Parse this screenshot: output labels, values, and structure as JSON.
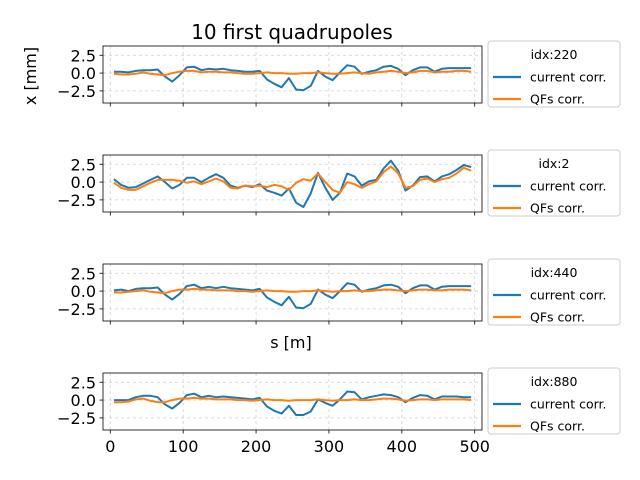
{
  "figure": {
    "title": "10 first quadrupoles",
    "ylabel": "x [mm]",
    "xlabel": "s [m]"
  },
  "colors": {
    "current": "#1f77b4",
    "qfs": "#ff7f0e",
    "grid": "#b0b0b0"
  },
  "chart_data": [
    {
      "type": "line",
      "legend_title": "idx:220",
      "legend_placement": "outside-right",
      "grid": true,
      "xlim": [
        -10,
        510
      ],
      "ylim": [
        -4.2,
        3.8
      ],
      "yticks": [
        "2.5",
        "0.0",
        "−2.5"
      ],
      "ytick_values": [
        2.5,
        0,
        -2.5
      ],
      "xticks": [
        0,
        100,
        200,
        300,
        400,
        500
      ],
      "show_xticklabels": false,
      "x": [
        5,
        15,
        25,
        35,
        45,
        55,
        65,
        75,
        85,
        95,
        105,
        115,
        125,
        135,
        145,
        155,
        165,
        175,
        185,
        195,
        205,
        215,
        225,
        235,
        245,
        255,
        265,
        275,
        285,
        295,
        305,
        315,
        325,
        335,
        345,
        355,
        365,
        375,
        385,
        395,
        405,
        415,
        425,
        435,
        445,
        455,
        465,
        475,
        485,
        495
      ],
      "series": [
        {
          "name": "current corr.",
          "values": [
            0.2,
            0.2,
            0.1,
            0.3,
            0.4,
            0.4,
            0.5,
            -0.5,
            -1.2,
            -0.3,
            0.8,
            0.9,
            0.4,
            0.6,
            0.5,
            0.6,
            0.4,
            0.3,
            0.2,
            0.2,
            0.3,
            -0.9,
            -1.5,
            -2.0,
            -0.7,
            -2.3,
            -2.4,
            -1.8,
            0.3,
            -0.5,
            -1.0,
            0.1,
            1.1,
            0.9,
            -0.1,
            0.2,
            0.4,
            0.9,
            1.0,
            0.6,
            -0.3,
            0.4,
            0.8,
            0.8,
            0.2,
            0.6,
            0.7,
            0.7,
            0.7,
            0.7
          ]
        },
        {
          "name": "QFs corr.",
          "values": [
            -0.1,
            -0.2,
            -0.2,
            -0.1,
            0.1,
            -0.1,
            -0.2,
            -0.3,
            0.0,
            0.2,
            0.3,
            0.3,
            0.1,
            0.2,
            0.2,
            0.1,
            0.1,
            0.0,
            -0.1,
            -0.1,
            0.0,
            0.1,
            0.0,
            0.0,
            -0.1,
            -0.1,
            0.0,
            0.0,
            0.1,
            0.0,
            -0.1,
            -0.1,
            0.0,
            0.1,
            0.0,
            -0.1,
            0.1,
            0.2,
            0.3,
            0.2,
            0.0,
            0.1,
            0.3,
            0.3,
            0.1,
            0.2,
            0.2,
            0.3,
            0.3,
            0.2
          ]
        }
      ]
    },
    {
      "type": "line",
      "legend_title": "idx:2",
      "legend_placement": "outside-right",
      "grid": true,
      "xlim": [
        -10,
        510
      ],
      "ylim": [
        -4.2,
        3.8
      ],
      "yticks": [
        "2.5",
        "0.0",
        "−2.5"
      ],
      "ytick_values": [
        2.5,
        0,
        -2.5
      ],
      "xticks": [
        0,
        100,
        200,
        300,
        400,
        500
      ],
      "show_xticklabels": false,
      "x": [
        5,
        15,
        25,
        35,
        45,
        55,
        65,
        75,
        85,
        95,
        105,
        115,
        125,
        135,
        145,
        155,
        165,
        175,
        185,
        195,
        205,
        215,
        225,
        235,
        245,
        255,
        265,
        275,
        285,
        295,
        305,
        315,
        325,
        335,
        345,
        355,
        365,
        375,
        385,
        395,
        405,
        415,
        425,
        435,
        445,
        455,
        465,
        475,
        485,
        495
      ],
      "series": [
        {
          "name": "current corr.",
          "values": [
            0.4,
            -0.4,
            -0.8,
            -0.7,
            -0.2,
            0.3,
            0.8,
            0.0,
            -0.9,
            -0.4,
            0.6,
            0.6,
            0.0,
            0.6,
            1.1,
            0.6,
            -0.5,
            -0.8,
            -0.5,
            -0.7,
            -0.3,
            -1.2,
            -1.5,
            -1.9,
            -0.9,
            -2.9,
            -3.5,
            -1.6,
            1.3,
            -0.8,
            -2.5,
            -1.5,
            1.2,
            0.8,
            -0.5,
            0.1,
            0.3,
            1.9,
            3.0,
            1.6,
            -1.2,
            -0.5,
            0.7,
            0.8,
            0.1,
            0.8,
            1.1,
            1.7,
            2.4,
            2.1
          ]
        },
        {
          "name": "QFs corr.",
          "values": [
            -0.1,
            -0.8,
            -1.1,
            -1.1,
            -0.6,
            -0.1,
            0.3,
            0.3,
            0.3,
            0.2,
            -0.1,
            0.1,
            -0.3,
            0.1,
            0.5,
            0.1,
            -0.8,
            -0.9,
            -0.5,
            -0.6,
            -0.5,
            -0.7,
            -0.4,
            -0.6,
            -1.1,
            -0.1,
            0.4,
            0.2,
            1.2,
            0.0,
            -1.1,
            -1.5,
            0.0,
            -0.3,
            -0.8,
            -0.3,
            0.1,
            1.4,
            2.2,
            1.2,
            -0.8,
            -0.6,
            0.3,
            0.5,
            0.0,
            0.4,
            0.6,
            1.2,
            2.0,
            1.6
          ]
        }
      ]
    },
    {
      "type": "line",
      "legend_title": "idx:440",
      "legend_placement": "outside-right",
      "grid": true,
      "xlim": [
        -10,
        510
      ],
      "ylim": [
        -4.2,
        3.8
      ],
      "yticks": [
        "2.5",
        "0.0",
        "−2.5"
      ],
      "ytick_values": [
        2.5,
        0,
        -2.5
      ],
      "xticks": [
        0,
        100,
        200,
        300,
        400,
        500
      ],
      "show_xticklabels": false,
      "x": [
        5,
        15,
        25,
        35,
        45,
        55,
        65,
        75,
        85,
        95,
        105,
        115,
        125,
        135,
        145,
        155,
        165,
        175,
        185,
        195,
        205,
        215,
        225,
        235,
        245,
        255,
        265,
        275,
        285,
        295,
        305,
        315,
        325,
        335,
        345,
        355,
        365,
        375,
        385,
        395,
        405,
        415,
        425,
        435,
        445,
        455,
        465,
        475,
        485,
        495
      ],
      "series": [
        {
          "name": "current corr.",
          "values": [
            0.1,
            0.2,
            0.0,
            0.3,
            0.4,
            0.4,
            0.5,
            -0.5,
            -1.2,
            -0.4,
            0.7,
            0.9,
            0.4,
            0.6,
            0.4,
            0.6,
            0.4,
            0.3,
            0.2,
            0.1,
            0.3,
            -0.9,
            -1.5,
            -2.0,
            -0.8,
            -2.3,
            -2.4,
            -1.8,
            0.2,
            -0.5,
            -1.0,
            0.0,
            1.1,
            0.9,
            -0.1,
            0.2,
            0.4,
            0.8,
            0.9,
            0.6,
            -0.3,
            0.4,
            0.8,
            0.8,
            0.2,
            0.6,
            0.7,
            0.7,
            0.7,
            0.7
          ]
        },
        {
          "name": "QFs corr.",
          "values": [
            -0.2,
            -0.2,
            -0.1,
            0.0,
            0.1,
            -0.1,
            -0.2,
            -0.3,
            0.0,
            0.2,
            0.2,
            0.3,
            0.2,
            0.2,
            0.1,
            0.1,
            0.1,
            0.0,
            0.0,
            -0.1,
            0.0,
            0.1,
            0.0,
            0.0,
            -0.1,
            -0.1,
            0.0,
            0.0,
            0.1,
            0.0,
            -0.1,
            0.0,
            0.0,
            0.1,
            0.0,
            0.0,
            0.1,
            0.2,
            0.2,
            0.1,
            0.0,
            0.1,
            0.2,
            0.2,
            0.1,
            0.1,
            0.2,
            0.2,
            0.2,
            0.1
          ]
        }
      ]
    },
    {
      "type": "line",
      "legend_title": "idx:880",
      "legend_placement": "outside-right",
      "grid": true,
      "xlim": [
        -10,
        510
      ],
      "ylim": [
        -4.2,
        3.8
      ],
      "yticks": [
        "2.5",
        "0.0",
        "−2.5"
      ],
      "ytick_values": [
        2.5,
        0,
        -2.5
      ],
      "xticks": [
        0,
        100,
        200,
        300,
        400,
        500
      ],
      "show_xticklabels": true,
      "x": [
        5,
        15,
        25,
        35,
        45,
        55,
        65,
        75,
        85,
        95,
        105,
        115,
        125,
        135,
        145,
        155,
        165,
        175,
        185,
        195,
        205,
        215,
        225,
        235,
        245,
        255,
        265,
        275,
        285,
        295,
        305,
        315,
        325,
        335,
        345,
        355,
        365,
        375,
        385,
        395,
        405,
        415,
        425,
        435,
        445,
        455,
        465,
        475,
        485,
        495
      ],
      "series": [
        {
          "name": "current corr.",
          "values": [
            0.0,
            0.0,
            0.0,
            0.4,
            0.6,
            0.6,
            0.4,
            -0.6,
            -1.2,
            -0.4,
            0.7,
            0.9,
            0.4,
            0.6,
            0.4,
            0.5,
            0.4,
            0.3,
            0.2,
            0.1,
            0.3,
            -0.9,
            -1.5,
            -1.9,
            -0.8,
            -2.1,
            -2.1,
            -1.6,
            0.1,
            -0.4,
            -0.8,
            0.1,
            1.2,
            1.1,
            0.1,
            0.4,
            0.6,
            0.8,
            0.7,
            0.4,
            -0.3,
            0.3,
            0.7,
            0.6,
            0.1,
            0.5,
            0.5,
            0.5,
            0.4,
            0.4
          ]
        },
        {
          "name": "QFs corr.",
          "values": [
            -0.3,
            -0.3,
            -0.2,
            0.1,
            0.2,
            -0.1,
            -0.3,
            -0.3,
            0.0,
            0.2,
            0.2,
            0.3,
            0.2,
            0.2,
            0.1,
            0.1,
            0.1,
            0.0,
            0.0,
            -0.1,
            0.0,
            0.1,
            0.0,
            0.0,
            -0.1,
            0.0,
            0.0,
            0.0,
            0.1,
            0.0,
            -0.1,
            0.0,
            0.0,
            0.1,
            0.0,
            0.0,
            0.1,
            0.2,
            0.2,
            0.1,
            -0.1,
            0.0,
            0.1,
            0.1,
            0.0,
            0.1,
            0.1,
            0.1,
            0.1,
            0.0
          ]
        }
      ]
    }
  ]
}
